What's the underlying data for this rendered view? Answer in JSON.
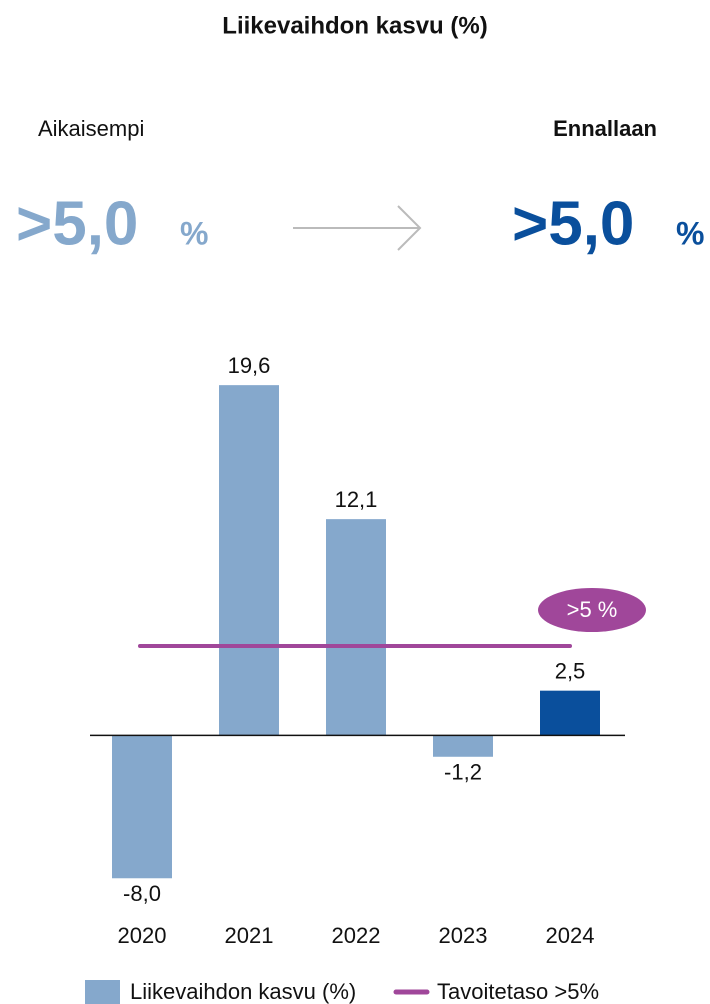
{
  "header": {
    "previous_label": "Aikaisempi",
    "previous_value": ">5,0",
    "previous_unit": "%",
    "current_label": "Ennallaan",
    "current_value": ">5,0",
    "current_unit": "%"
  },
  "chart_data": {
    "type": "bar",
    "title": "Liikevaihdon kasvu (%)",
    "categories": [
      "2020",
      "2021",
      "2022",
      "2023",
      "2024"
    ],
    "series": [
      {
        "name": "Liikevaihdon kasvu (%)",
        "color": "#85a8cc",
        "colors": [
          "#85a8cc",
          "#85a8cc",
          "#85a8cc",
          "#85a8cc",
          "#0a4f9c"
        ],
        "values": [
          -8.0,
          19.6,
          12.1,
          -1.2,
          2.5
        ],
        "value_labels": [
          "-8,0",
          "19,6",
          "12,1",
          "-1,2",
          "2,5"
        ]
      }
    ],
    "target": {
      "name": "Tavoitetaso >5%",
      "value": 5,
      "label": ">5 %",
      "color": "#a0479a"
    },
    "ylim": [
      -10,
      20
    ]
  }
}
